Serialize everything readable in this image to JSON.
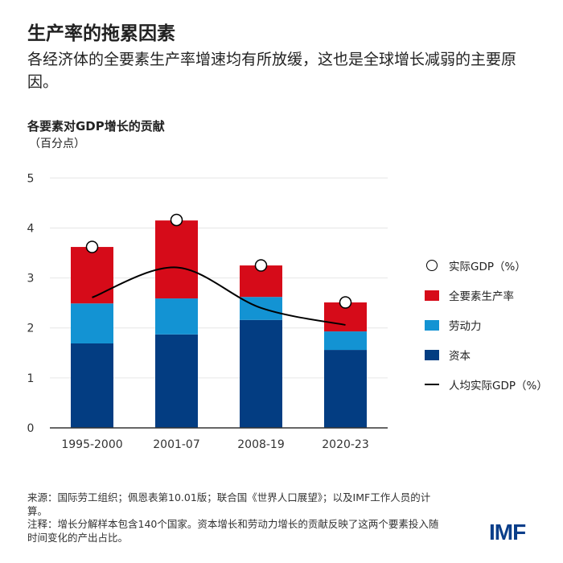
{
  "title": "生产率的拖累因素",
  "subtitle": "各经济体的全要素生产率增速均有所放缓，这也是全球增长减弱的主要原因。",
  "chart_data": {
    "type": "bar",
    "stacked": true,
    "title": "各要素对GDP增长的贡献",
    "ylabel": "（百分点）",
    "ylim": [
      0,
      5
    ],
    "yticks": [
      0,
      1,
      2,
      3,
      4,
      5
    ],
    "grid": true,
    "legend_position": "right",
    "categories": [
      "1995-2000",
      "2001-07",
      "2008-19",
      "2020-23"
    ],
    "series": [
      {
        "name": "资本",
        "type": "bar",
        "color": "#033d82",
        "values": [
          1.69,
          1.87,
          2.16,
          1.56
        ]
      },
      {
        "name": "劳动力",
        "type": "bar",
        "color": "#1393d3",
        "values": [
          0.8,
          0.72,
          0.46,
          0.37
        ]
      },
      {
        "name": "全要素生产率",
        "type": "bar",
        "color": "#d60b19",
        "values": [
          1.13,
          1.56,
          0.63,
          0.58
        ]
      },
      {
        "name": "实际GDP（%）",
        "type": "scatter",
        "color": "#ffffff",
        "values": [
          3.62,
          4.16,
          3.25,
          2.51
        ]
      },
      {
        "name": "人均实际GDP（%）",
        "type": "line",
        "color": "#000000",
        "values": [
          2.61,
          3.21,
          2.4,
          2.06
        ]
      }
    ]
  },
  "legend_order": [
    3,
    2,
    1,
    0,
    4
  ],
  "notes": [
    "来源：国际劳工组织；佩恩表第10.01版；联合国《世界人口展望》；以及IMF工作人员的计算。",
    "注释：增长分解样本包含140个国家。资本增长和劳动力增长的贡献反映了这两个要素投入随时间变化的产出占比。"
  ],
  "logo": "IMF"
}
